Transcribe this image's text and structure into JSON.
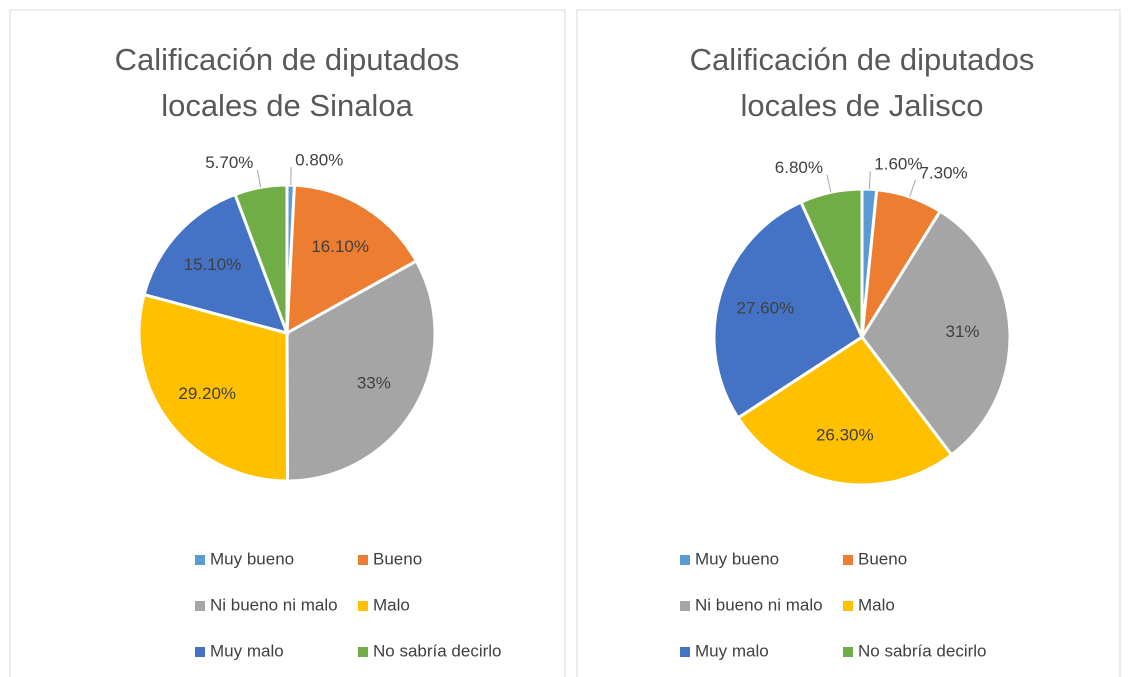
{
  "chart_data": [
    {
      "type": "pie",
      "title": "Calificación de diputados locales de Sinaloa",
      "categories": [
        "Muy bueno",
        "Bueno",
        "Ni bueno ni malo",
        "Malo",
        "Muy malo",
        "No sabría decirlo"
      ],
      "values": [
        0.8,
        16.1,
        33,
        29.2,
        15.1,
        5.7
      ],
      "value_labels": [
        "0.80%",
        "16.10%",
        "33%",
        "29.20%",
        "15.10%",
        "5.70%"
      ],
      "colors": [
        "#5b9bd5",
        "#ed7d31",
        "#a5a5a5",
        "#ffc000",
        "#4472c4",
        "#70ad47"
      ],
      "legend": "bottom"
    },
    {
      "type": "pie",
      "title": "Calificación de diputados locales de Jalisco",
      "categories": [
        "Muy bueno",
        "Bueno",
        "Ni bueno ni malo",
        "Malo",
        "Muy malo",
        "No sabría decirlo"
      ],
      "values": [
        1.6,
        7.3,
        31,
        26.3,
        27.6,
        6.8
      ],
      "value_labels": [
        "1.60%",
        "7.30%",
        "31%",
        "26.30%",
        "27.60%",
        "6.80%"
      ],
      "colors": [
        "#5b9bd5",
        "#ed7d31",
        "#a5a5a5",
        "#ffc000",
        "#4472c4",
        "#70ad47"
      ],
      "legend": "bottom"
    }
  ]
}
